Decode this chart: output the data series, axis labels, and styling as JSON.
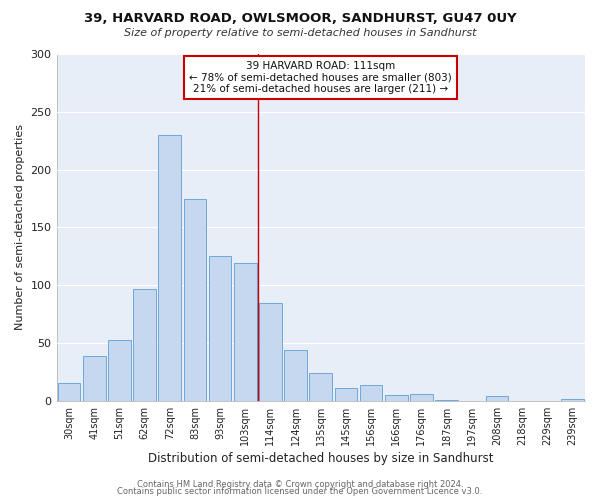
{
  "title": "39, HARVARD ROAD, OWLSMOOR, SANDHURST, GU47 0UY",
  "subtitle": "Size of property relative to semi-detached houses in Sandhurst",
  "xlabel": "Distribution of semi-detached houses by size in Sandhurst",
  "ylabel": "Number of semi-detached properties",
  "bar_labels": [
    "30sqm",
    "41sqm",
    "51sqm",
    "62sqm",
    "72sqm",
    "83sqm",
    "93sqm",
    "103sqm",
    "114sqm",
    "124sqm",
    "135sqm",
    "145sqm",
    "156sqm",
    "166sqm",
    "176sqm",
    "187sqm",
    "197sqm",
    "208sqm",
    "218sqm",
    "229sqm",
    "239sqm"
  ],
  "bar_values": [
    15,
    39,
    53,
    97,
    230,
    175,
    125,
    119,
    85,
    44,
    24,
    11,
    14,
    5,
    6,
    1,
    0,
    4,
    0,
    0,
    2
  ],
  "bar_color": "#c5d8f0",
  "bar_edge_color": "#6fa8d6",
  "background_color": "#e8eef8",
  "fig_background_color": "#ffffff",
  "grid_color": "#ffffff",
  "vline_x_index": 8,
  "vline_color": "#cc0000",
  "annotation_title": "39 HARVARD ROAD: 111sqm",
  "annotation_line1": "← 78% of semi-detached houses are smaller (803)",
  "annotation_line2": "21% of semi-detached houses are larger (211) →",
  "annotation_box_edge_color": "#cc0000",
  "ylim": [
    0,
    300
  ],
  "yticks": [
    0,
    50,
    100,
    150,
    200,
    250,
    300
  ],
  "footer1": "Contains HM Land Registry data © Crown copyright and database right 2024.",
  "footer2": "Contains public sector information licensed under the Open Government Licence v3.0."
}
